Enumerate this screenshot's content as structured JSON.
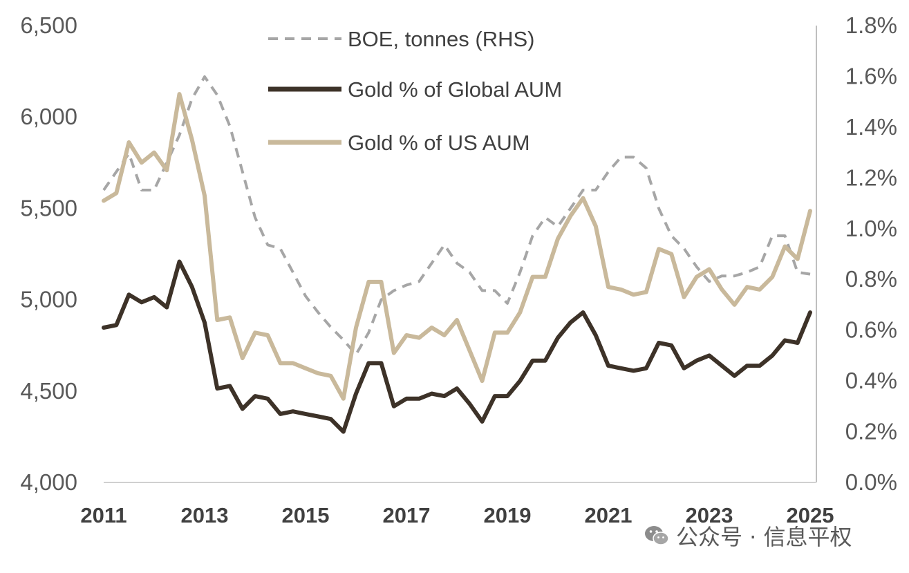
{
  "chart_data": {
    "type": "line",
    "title": "",
    "xlabel": "",
    "ylabel": "",
    "left_axis": {
      "series_unit": "BOE, tonnes",
      "ylim": [
        4000,
        6500
      ],
      "ticks": [
        4000,
        4500,
        5000,
        5500,
        6000,
        6500
      ],
      "tick_labels": [
        "4,000",
        "4,500",
        "5,000",
        "5,500",
        "6,000",
        "6,500"
      ]
    },
    "right_axis": {
      "ylim": [
        0.0,
        1.8
      ],
      "ticks": [
        0.0,
        0.2,
        0.4,
        0.6,
        0.8,
        1.0,
        1.2,
        1.4,
        1.6,
        1.8
      ],
      "tick_labels": [
        "0.0%",
        "0.2%",
        "0.4%",
        "0.6%",
        "0.8%",
        "1.0%",
        "1.2%",
        "1.4%",
        "1.6%",
        "1.8%"
      ]
    },
    "x_range": [
      2011,
      2025
    ],
    "x_ticks": [
      "2011",
      "2013",
      "2015",
      "2017",
      "2019",
      "2021",
      "2023",
      "2025"
    ],
    "legend_position": "top-center",
    "series": [
      {
        "name": "BOE, tonnes (RHS)",
        "style": "dashed",
        "color": "#a6a6a6",
        "axis": "left",
        "x": [
          2011.0,
          2011.5,
          2011.75,
          2012.0,
          2012.25,
          2012.5,
          2012.75,
          2013.0,
          2013.25,
          2013.5,
          2013.75,
          2014.0,
          2014.25,
          2014.5,
          2014.75,
          2015.0,
          2015.25,
          2015.5,
          2015.75,
          2016.0,
          2016.25,
          2016.5,
          2016.75,
          2017.0,
          2017.25,
          2017.5,
          2017.75,
          2018.0,
          2018.25,
          2018.5,
          2018.75,
          2019.0,
          2019.25,
          2019.5,
          2019.75,
          2020.0,
          2020.25,
          2020.5,
          2020.75,
          2021.0,
          2021.25,
          2021.5,
          2021.75,
          2022.0,
          2022.25,
          2022.5,
          2022.75,
          2023.0,
          2023.25,
          2023.5,
          2023.75,
          2024.0,
          2024.25,
          2024.5,
          2024.75,
          2025.0
        ],
        "values": [
          5600,
          5800,
          5600,
          5600,
          5750,
          5900,
          6100,
          6220,
          6120,
          5950,
          5700,
          5450,
          5300,
          5280,
          5150,
          5020,
          4930,
          4850,
          4780,
          4700,
          4820,
          5000,
          5050,
          5080,
          5100,
          5200,
          5300,
          5200,
          5150,
          5050,
          5050,
          4980,
          5150,
          5350,
          5450,
          5400,
          5500,
          5600,
          5600,
          5700,
          5780,
          5780,
          5720,
          5500,
          5350,
          5280,
          5180,
          5100,
          5130,
          5130,
          5150,
          5180,
          5350,
          5350,
          5150,
          5140
        ]
      },
      {
        "name": "Gold % of Global AUM",
        "style": "solid",
        "color": "#3d3228",
        "axis": "right",
        "x": [
          2011.0,
          2011.25,
          2011.5,
          2011.75,
          2012.0,
          2012.25,
          2012.5,
          2012.75,
          2013.0,
          2013.25,
          2013.5,
          2013.75,
          2014.0,
          2014.25,
          2014.5,
          2014.75,
          2015.0,
          2015.25,
          2015.5,
          2015.75,
          2016.0,
          2016.25,
          2016.5,
          2016.75,
          2017.0,
          2017.25,
          2017.5,
          2017.75,
          2018.0,
          2018.25,
          2018.5,
          2018.75,
          2019.0,
          2019.25,
          2019.5,
          2019.75,
          2020.0,
          2020.25,
          2020.5,
          2020.75,
          2021.0,
          2021.25,
          2021.5,
          2021.75,
          2022.0,
          2022.25,
          2022.5,
          2022.75,
          2023.0,
          2023.25,
          2023.5,
          2023.75,
          2024.0,
          2024.25,
          2024.5,
          2024.75,
          2025.0
        ],
        "values": [
          0.61,
          0.62,
          0.74,
          0.71,
          0.73,
          0.69,
          0.87,
          0.77,
          0.63,
          0.37,
          0.38,
          0.29,
          0.34,
          0.33,
          0.27,
          0.28,
          0.27,
          0.26,
          0.25,
          0.2,
          0.35,
          0.47,
          0.47,
          0.3,
          0.33,
          0.33,
          0.35,
          0.34,
          0.37,
          0.31,
          0.24,
          0.34,
          0.34,
          0.4,
          0.48,
          0.48,
          0.57,
          0.63,
          0.67,
          0.58,
          0.46,
          0.45,
          0.44,
          0.45,
          0.55,
          0.54,
          0.45,
          0.48,
          0.5,
          0.46,
          0.42,
          0.46,
          0.46,
          0.5,
          0.56,
          0.55,
          0.67
        ]
      },
      {
        "name": "Gold % of US AUM",
        "style": "solid",
        "color": "#c9b99b",
        "axis": "right",
        "x": [
          2011.0,
          2011.25,
          2011.5,
          2011.75,
          2012.0,
          2012.25,
          2012.5,
          2012.75,
          2013.0,
          2013.25,
          2013.5,
          2013.75,
          2014.0,
          2014.25,
          2014.5,
          2014.75,
          2015.0,
          2015.25,
          2015.5,
          2015.75,
          2016.0,
          2016.25,
          2016.5,
          2016.75,
          2017.0,
          2017.25,
          2017.5,
          2017.75,
          2018.0,
          2018.25,
          2018.5,
          2018.75,
          2019.0,
          2019.25,
          2019.5,
          2019.75,
          2020.0,
          2020.25,
          2020.5,
          2020.75,
          2021.0,
          2021.25,
          2021.5,
          2021.75,
          2022.0,
          2022.25,
          2022.5,
          2022.75,
          2023.0,
          2023.25,
          2023.5,
          2023.75,
          2024.0,
          2024.25,
          2024.5,
          2024.75,
          2025.0
        ],
        "values": [
          1.11,
          1.14,
          1.34,
          1.26,
          1.3,
          1.23,
          1.53,
          1.35,
          1.13,
          0.64,
          0.65,
          0.49,
          0.59,
          0.58,
          0.47,
          0.47,
          0.45,
          0.43,
          0.42,
          0.33,
          0.61,
          0.79,
          0.79,
          0.51,
          0.58,
          0.57,
          0.61,
          0.58,
          0.64,
          0.52,
          0.4,
          0.59,
          0.59,
          0.67,
          0.81,
          0.81,
          0.96,
          1.05,
          1.12,
          1.01,
          0.77,
          0.76,
          0.74,
          0.75,
          0.92,
          0.9,
          0.73,
          0.81,
          0.84,
          0.76,
          0.7,
          0.77,
          0.76,
          0.81,
          0.93,
          0.88,
          1.07
        ]
      }
    ]
  },
  "watermark": {
    "icon": "wechat-icon",
    "text": "公众号 · 信息平权"
  }
}
